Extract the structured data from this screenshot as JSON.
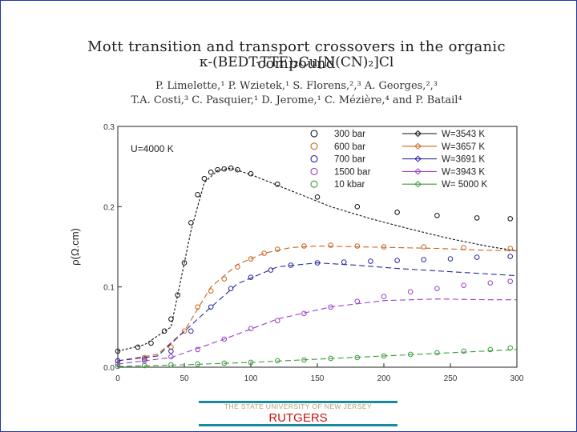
{
  "slide": {
    "title_line1": "Mott transition and transport crossovers in the organic compound",
    "title_line2": "κ-(BEDT-TTF)₂Cu[N(CN)₂]Cl",
    "authors_line1": "P. Limelette,¹ P. Wzietek,¹ S. Florens,²,³ A. Georges,²,³",
    "authors_line2": "T.A. Costi,³ C. Pasquier,¹ D. Jerome,¹ C. Mézière,⁴ and P. Batail⁴"
  },
  "footer": {
    "university": "THE STATE UNIVERSITY OF NEW JERSEY",
    "name": "RUTGERS"
  },
  "chart_data": {
    "type": "scatter",
    "title": "",
    "xlabel": "",
    "ylabel": "ρ(Ω.cm)",
    "xlim": [
      0,
      300
    ],
    "ylim": [
      0,
      0.3
    ],
    "x_ticks": [
      0,
      50,
      100,
      150,
      200,
      250,
      300
    ],
    "y_ticks": [
      0.0,
      0.1,
      0.2,
      0.3
    ],
    "x_tick_labels": [
      "0",
      "50",
      "100",
      "150",
      "200",
      "250",
      "300"
    ],
    "y_tick_labels": [
      "0.0",
      "0.1",
      "0.2",
      "0.3"
    ],
    "annotation": "U=4000 K",
    "series": [
      {
        "name": "300 bar",
        "fit_label": "W=3543 K",
        "color": "#111111",
        "x": [
          0,
          15,
          25,
          35,
          40,
          45,
          50,
          55,
          60,
          65,
          70,
          75,
          80,
          85,
          90,
          100,
          120,
          150,
          180,
          210,
          240,
          270,
          295
        ],
        "values": [
          0.02,
          0.025,
          0.03,
          0.045,
          0.06,
          0.09,
          0.13,
          0.18,
          0.215,
          0.235,
          0.243,
          0.246,
          0.247,
          0.248,
          0.246,
          0.241,
          0.228,
          0.212,
          0.2,
          0.193,
          0.189,
          0.186,
          0.185
        ],
        "fit_x": [
          0,
          20,
          40,
          55,
          65,
          75,
          85,
          100,
          130,
          160,
          190,
          220,
          250,
          280,
          300
        ],
        "fit_values": [
          0.02,
          0.028,
          0.05,
          0.17,
          0.23,
          0.245,
          0.248,
          0.24,
          0.22,
          0.2,
          0.185,
          0.172,
          0.16,
          0.15,
          0.145
        ]
      },
      {
        "name": "600 bar",
        "fit_label": "W=3657 K",
        "color": "#c8641e",
        "x": [
          0,
          20,
          40,
          50,
          60,
          70,
          80,
          90,
          100,
          110,
          120,
          140,
          160,
          180,
          200,
          230,
          260,
          295
        ],
        "values": [
          0.008,
          0.012,
          0.025,
          0.045,
          0.075,
          0.095,
          0.11,
          0.125,
          0.135,
          0.142,
          0.147,
          0.151,
          0.152,
          0.151,
          0.15,
          0.15,
          0.149,
          0.148
        ],
        "fit_x": [
          0,
          30,
          50,
          70,
          90,
          110,
          130,
          150,
          180,
          210,
          240,
          270,
          300
        ],
        "fit_values": [
          0.008,
          0.016,
          0.045,
          0.1,
          0.128,
          0.142,
          0.149,
          0.151,
          0.15,
          0.149,
          0.148,
          0.146,
          0.145
        ]
      },
      {
        "name": "700 bar",
        "fit_label": "W=3691 K",
        "color": "#2a2aa0",
        "x": [
          0,
          20,
          40,
          55,
          70,
          85,
          100,
          115,
          130,
          150,
          170,
          190,
          210,
          230,
          250,
          270,
          295
        ],
        "values": [
          0.008,
          0.01,
          0.02,
          0.045,
          0.075,
          0.098,
          0.112,
          0.121,
          0.127,
          0.13,
          0.131,
          0.132,
          0.133,
          0.134,
          0.135,
          0.137,
          0.138
        ],
        "fit_x": [
          0,
          30,
          60,
          90,
          120,
          150,
          180,
          210,
          240,
          270,
          300
        ],
        "fit_values": [
          0.008,
          0.014,
          0.06,
          0.104,
          0.125,
          0.13,
          0.127,
          0.123,
          0.12,
          0.117,
          0.114
        ]
      },
      {
        "name": "1500 bar",
        "fit_label": "W=3943 K",
        "color": "#9a40c8",
        "x": [
          0,
          20,
          40,
          60,
          80,
          100,
          120,
          140,
          160,
          180,
          200,
          220,
          240,
          260,
          280,
          295
        ],
        "values": [
          0.004,
          0.008,
          0.013,
          0.022,
          0.035,
          0.048,
          0.058,
          0.067,
          0.075,
          0.082,
          0.088,
          0.094,
          0.098,
          0.102,
          0.105,
          0.107
        ],
        "fit_x": [
          0,
          40,
          80,
          120,
          160,
          200,
          240,
          280,
          300
        ],
        "fit_values": [
          0.004,
          0.012,
          0.035,
          0.06,
          0.075,
          0.083,
          0.085,
          0.084,
          0.084
        ]
      },
      {
        "name": "10 kbar",
        "fit_label": "W= 5000 K",
        "color": "#3a9a3a",
        "x": [
          0,
          20,
          40,
          60,
          80,
          100,
          120,
          140,
          160,
          180,
          200,
          220,
          240,
          260,
          280,
          295
        ],
        "values": [
          0.001,
          0.002,
          0.003,
          0.004,
          0.005,
          0.006,
          0.008,
          0.009,
          0.011,
          0.012,
          0.014,
          0.016,
          0.018,
          0.02,
          0.022,
          0.024
        ],
        "fit_x": [
          0,
          50,
          100,
          150,
          200,
          250,
          300
        ],
        "fit_values": [
          0.001,
          0.003,
          0.006,
          0.01,
          0.014,
          0.018,
          0.022
        ]
      }
    ]
  }
}
